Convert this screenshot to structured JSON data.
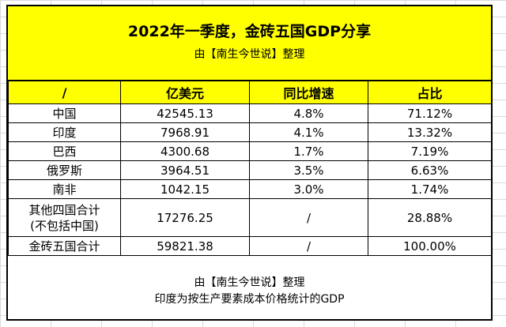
{
  "title": "2022年一季度，金砖五国GDP分享",
  "subtitle": "由【南生今世说】整理",
  "columns": [
    "/",
    "亿美元",
    "同比增速",
    "占比"
  ],
  "rows": [
    [
      "中国",
      "42545.13",
      "4.8%",
      "71.12%"
    ],
    [
      "印度",
      "7968.91",
      "4.1%",
      "13.32%"
    ],
    [
      "巴西",
      "4300.68",
      "1.7%",
      "7.19%"
    ],
    [
      "俄罗斯",
      "3964.51",
      "3.5%",
      "6.63%"
    ],
    [
      "南非",
      "1042.15",
      "3.0%",
      "1.74%"
    ]
  ],
  "others_row": {
    "label_line1": "其他四国合计",
    "label_line2": "(不包括中国)",
    "value": "17276.25",
    "growth": "/",
    "share": "28.88%"
  },
  "total_row": [
    "金砖五国合计",
    "59821.38",
    "/",
    "100.00%"
  ],
  "footer": {
    "line1": "由【南生今世说】整理",
    "line2": "印度为按生产要素成本价格统计的GDP"
  },
  "colors": {
    "header_fill": "#ffff00",
    "border": "#000000"
  }
}
